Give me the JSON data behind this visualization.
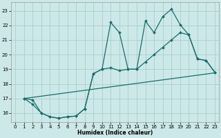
{
  "bg_color": "#cce8e8",
  "grid_color": "#aacece",
  "line_color": "#1a6b6b",
  "xlabel": "Humidex (Indice chaleur)",
  "xlim": [
    -0.5,
    23.5
  ],
  "ylim": [
    15.4,
    23.6
  ],
  "xticks": [
    0,
    1,
    2,
    3,
    4,
    5,
    6,
    7,
    8,
    9,
    10,
    11,
    12,
    13,
    14,
    15,
    16,
    17,
    18,
    19,
    20,
    21,
    22,
    23
  ],
  "yticks": [
    16,
    17,
    18,
    19,
    20,
    21,
    22,
    23
  ],
  "curve1_x": [
    1,
    2,
    3,
    4,
    5,
    6,
    7,
    8,
    9,
    10,
    11,
    12,
    13,
    14,
    15,
    16,
    17,
    18,
    19,
    20,
    21,
    22,
    23
  ],
  "curve1_y": [
    17.0,
    16.9,
    16.0,
    15.75,
    15.65,
    15.75,
    15.8,
    16.3,
    18.7,
    19.0,
    22.2,
    21.5,
    19.0,
    19.0,
    22.3,
    21.5,
    22.6,
    23.1,
    22.05,
    21.35,
    19.7,
    19.6,
    18.8
  ],
  "curve2_x": [
    1,
    2,
    3,
    4,
    5,
    6,
    7,
    8,
    9,
    10,
    11,
    12,
    13,
    14,
    15,
    16,
    17,
    18,
    19,
    20,
    21,
    22,
    23
  ],
  "curve2_y": [
    17.0,
    16.6,
    16.0,
    15.75,
    15.65,
    15.75,
    15.8,
    16.3,
    18.7,
    19.0,
    19.1,
    18.9,
    19.0,
    19.0,
    19.5,
    20.0,
    20.5,
    21.0,
    21.5,
    21.35,
    19.7,
    19.6,
    18.8
  ],
  "curve3_x": [
    1,
    23
  ],
  "curve3_y": [
    17.0,
    18.75
  ],
  "marker_style": "D",
  "marker_size": 2.0,
  "line_width": 0.9,
  "tick_fontsize": 5.0,
  "xlabel_fontsize": 5.5
}
